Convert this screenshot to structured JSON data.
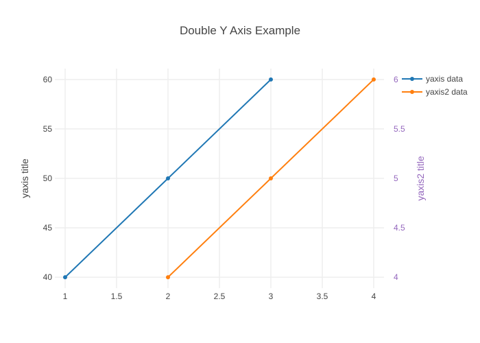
{
  "chart_data": {
    "type": "line",
    "title": "Double Y Axis Example",
    "xlabel": "",
    "ylabel": "yaxis title",
    "y2label": "yaxis2 title",
    "xlim": [
      0.9,
      4.1
    ],
    "ylim": [
      38.9,
      61.1
    ],
    "y2lim": [
      3.89,
      6.11
    ],
    "x_ticks": [
      1,
      1.5,
      2,
      2.5,
      3,
      3.5,
      4
    ],
    "x_tick_labels": [
      "1",
      "1.5",
      "2",
      "2.5",
      "3",
      "3.5",
      "4"
    ],
    "y_ticks": [
      40,
      45,
      50,
      55,
      60
    ],
    "y_tick_labels": [
      "40",
      "45",
      "50",
      "55",
      "60"
    ],
    "y2_ticks": [
      4,
      4.5,
      5,
      5.5,
      6
    ],
    "y2_tick_labels": [
      "4",
      "4.5",
      "5",
      "5.5",
      "6"
    ],
    "grid": true,
    "legend_position": "top-right",
    "series": [
      {
        "name": "yaxis data",
        "axis": "y",
        "color": "#1f77b4",
        "x": [
          1,
          2,
          3
        ],
        "y": [
          40,
          50,
          60
        ]
      },
      {
        "name": "yaxis2 data",
        "axis": "y2",
        "color": "#ff7f0e",
        "x": [
          2,
          3,
          4
        ],
        "y": [
          4,
          5,
          6
        ]
      }
    ],
    "y2_color": "#9467bd"
  }
}
